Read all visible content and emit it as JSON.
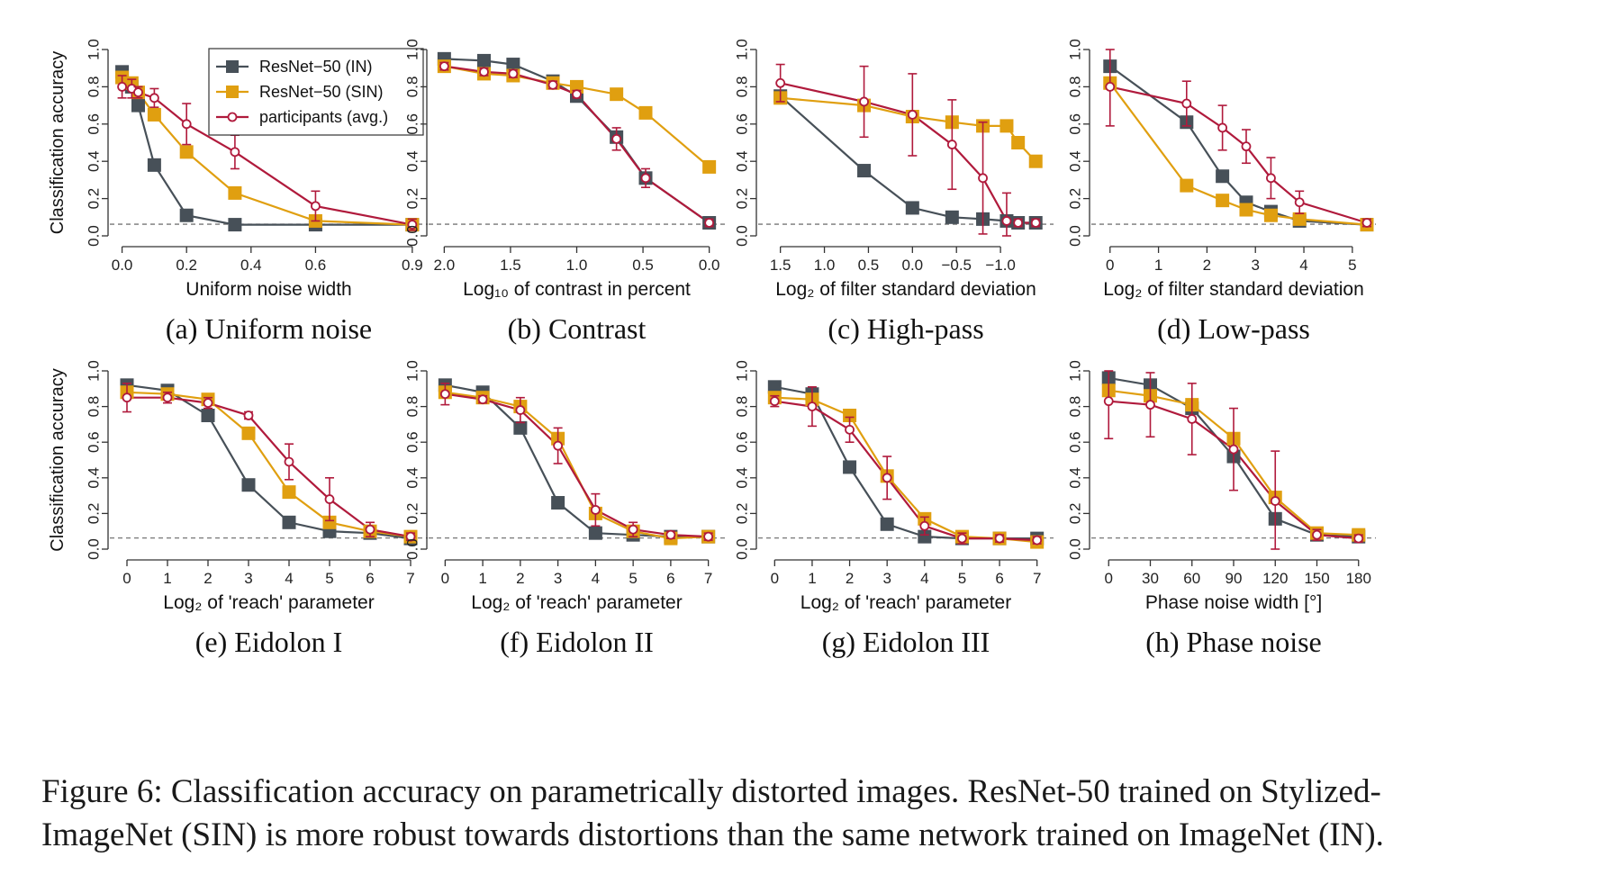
{
  "colors": {
    "in": "#475058",
    "sin": "#e09f10",
    "participants": "#b01a3c",
    "chance": "#777777"
  },
  "legend": [
    "ResNet−50 (IN)",
    "ResNet−50 (SIN)",
    "participants (avg.)"
  ],
  "caption": {
    "line1": "Figure 6: Classification accuracy on parametrically distorted images. ResNet-50 trained on Stylized-",
    "line2": "ImageNet (SIN) is more robust towards distortions than the same network trained on ImageNet (IN)."
  },
  "chart_data": [
    {
      "type": "line",
      "title": "(a) Uniform noise",
      "xlabel": "Uniform noise width",
      "ylabel": "Classification accuracy",
      "xlim": [
        -0.01,
        0.92
      ],
      "ylim": [
        0,
        1
      ],
      "xticks": [
        0.0,
        0.2,
        0.4,
        0.6,
        0.9
      ],
      "xtick_labels": [
        "0.0",
        "0.2",
        "0.4",
        "0.6",
        "0.9"
      ],
      "yticks": [
        0,
        0.2,
        0.4,
        0.6,
        0.8,
        1.0
      ],
      "ytick_labels": [
        "0.0",
        "0.2",
        "0.4",
        "0.6",
        "0.8",
        "1.0"
      ],
      "chance": 0.0625,
      "legend_position": "top-right",
      "x": [
        0.0,
        0.03,
        0.05,
        0.1,
        0.2,
        0.35,
        0.6,
        0.9
      ],
      "series": [
        {
          "name": "ResNet−50 (IN)",
          "values": [
            0.88,
            0.8,
            0.7,
            0.38,
            0.11,
            0.06,
            0.06,
            0.06
          ]
        },
        {
          "name": "ResNet−50 (SIN)",
          "values": [
            0.85,
            0.82,
            0.77,
            0.65,
            0.45,
            0.23,
            0.08,
            0.06
          ]
        },
        {
          "name": "participants (avg.)",
          "values": [
            0.8,
            0.79,
            0.77,
            0.74,
            0.6,
            0.45,
            0.16,
            0.06
          ],
          "err": [
            0.06,
            0.05,
            0.03,
            0.05,
            0.11,
            0.09,
            0.08,
            0.03
          ]
        }
      ]
    },
    {
      "type": "line",
      "title": "(b) Contrast",
      "xlabel": "Log₁₀ of contrast in percent",
      "xlim": [
        2.05,
        -0.05
      ],
      "ylim": [
        0,
        1
      ],
      "xticks": [
        2.0,
        1.5,
        1.0,
        0.5,
        0.0
      ],
      "xtick_labels": [
        "2.0",
        "1.5",
        "1.0",
        "0.5",
        "0.0"
      ],
      "yticks": [
        0,
        0.2,
        0.4,
        0.6,
        0.8,
        1.0
      ],
      "ytick_labels": [
        "0.0",
        "0.2",
        "0.4",
        "0.6",
        "0.8",
        "1.0"
      ],
      "chance": 0.0625,
      "x": [
        2.0,
        1.7,
        1.48,
        1.18,
        1.0,
        0.7,
        0.48,
        0.0
      ],
      "series": [
        {
          "name": "ResNet−50 (IN)",
          "values": [
            0.95,
            0.94,
            0.92,
            0.83,
            0.75,
            0.53,
            0.31,
            0.07
          ]
        },
        {
          "name": "ResNet−50 (SIN)",
          "values": [
            0.91,
            0.87,
            0.86,
            0.82,
            0.8,
            0.76,
            0.66,
            0.37
          ]
        },
        {
          "name": "participants (avg.)",
          "values": [
            0.91,
            0.88,
            0.87,
            0.81,
            0.76,
            0.52,
            0.31,
            0.07
          ],
          "err": [
            0.02,
            0.02,
            0.02,
            0.02,
            0.02,
            0.06,
            0.05,
            0.02
          ]
        }
      ]
    },
    {
      "type": "line",
      "title": "(c) High-pass",
      "xlabel": "Log₂ of filter standard deviation",
      "xlim": [
        1.65,
        -1.5
      ],
      "ylim": [
        0,
        1
      ],
      "xticks": [
        1.5,
        1.0,
        0.5,
        0.0,
        -0.5,
        -1.0
      ],
      "xtick_labels": [
        "1.5",
        "1.0",
        "0.5",
        "0.0",
        "−0.5",
        "−1.0"
      ],
      "yticks": [
        0,
        0.2,
        0.4,
        0.6,
        0.8,
        1.0
      ],
      "ytick_labels": [
        "0.0",
        "0.2",
        "0.4",
        "0.6",
        "0.8",
        "1.0"
      ],
      "chance": 0.0625,
      "x": [
        1.5,
        0.55,
        0.0,
        -0.45,
        -0.8,
        -1.07,
        -1.2,
        -1.4
      ],
      "series": [
        {
          "name": "ResNet−50 (IN)",
          "values": [
            0.75,
            0.35,
            0.15,
            0.1,
            0.09,
            0.08,
            0.07,
            0.07
          ]
        },
        {
          "name": "ResNet−50 (SIN)",
          "values": [
            0.74,
            0.7,
            0.64,
            0.61,
            0.59,
            0.59,
            0.5,
            0.4
          ]
        },
        {
          "name": "participants (avg.)",
          "values": [
            0.82,
            0.72,
            0.65,
            0.49,
            0.31,
            0.08,
            0.07,
            0.07
          ],
          "err": [
            0.1,
            0.19,
            0.22,
            0.24,
            0.3,
            0.15,
            0.02,
            0.02
          ]
        }
      ]
    },
    {
      "type": "line",
      "title": "(d) Low-pass",
      "xlabel": "Log₂ of filter standard deviation",
      "xlim": [
        -0.2,
        5.3
      ],
      "ylim": [
        0,
        1
      ],
      "xticks": [
        0,
        1,
        2,
        3,
        4,
        5
      ],
      "xtick_labels": [
        "0",
        "1",
        "2",
        "3",
        "4",
        "5"
      ],
      "yticks": [
        0,
        0.2,
        0.4,
        0.6,
        0.8,
        1.0
      ],
      "ytick_labels": [
        "0.0",
        "0.2",
        "0.4",
        "0.6",
        "0.8",
        "1.0"
      ],
      "chance": 0.0625,
      "x": [
        0,
        1.58,
        2.32,
        2.81,
        3.32,
        3.91,
        5.3
      ],
      "series": [
        {
          "name": "ResNet−50 (IN)",
          "values": [
            0.91,
            0.61,
            0.32,
            0.18,
            0.13,
            0.08,
            0.06
          ]
        },
        {
          "name": "ResNet−50 (SIN)",
          "values": [
            0.82,
            0.27,
            0.19,
            0.14,
            0.11,
            0.09,
            0.06
          ]
        },
        {
          "name": "participants (avg.)",
          "values": [
            0.8,
            0.71,
            0.58,
            0.48,
            0.31,
            0.18,
            0.07
          ],
          "err": [
            0.21,
            0.12,
            0.12,
            0.09,
            0.11,
            0.06,
            0.02
          ]
        }
      ]
    },
    {
      "type": "line",
      "title": "(e) Eidolon I",
      "xlabel": "Log₂ of 'reach' parameter",
      "ylabel": "Classification accuracy",
      "xlim": [
        -0.2,
        7.2
      ],
      "ylim": [
        0,
        1
      ],
      "xticks": [
        0,
        1,
        2,
        3,
        4,
        5,
        6,
        7
      ],
      "xtick_labels": [
        "0",
        "1",
        "2",
        "3",
        "4",
        "5",
        "6",
        "7"
      ],
      "yticks": [
        0,
        0.2,
        0.4,
        0.6,
        0.8,
        1.0
      ],
      "ytick_labels": [
        "0.0",
        "0.2",
        "0.4",
        "0.6",
        "0.8",
        "1.0"
      ],
      "chance": 0.0625,
      "x": [
        0,
        1,
        2,
        3,
        4,
        5,
        6,
        7
      ],
      "series": [
        {
          "name": "ResNet−50 (IN)",
          "values": [
            0.92,
            0.89,
            0.75,
            0.36,
            0.15,
            0.1,
            0.09,
            0.06
          ]
        },
        {
          "name": "ResNet−50 (SIN)",
          "values": [
            0.88,
            0.87,
            0.84,
            0.65,
            0.32,
            0.15,
            0.1,
            0.07
          ]
        },
        {
          "name": "participants (avg.)",
          "values": [
            0.85,
            0.85,
            0.82,
            0.75,
            0.49,
            0.28,
            0.11,
            0.07
          ],
          "err": [
            0.08,
            0.03,
            0.03,
            0.02,
            0.1,
            0.12,
            0.04,
            0.02
          ]
        }
      ]
    },
    {
      "type": "line",
      "title": "(f) Eidolon II",
      "xlabel": "Log₂ of 'reach' parameter",
      "xlim": [
        -0.2,
        7.2
      ],
      "ylim": [
        0,
        1
      ],
      "xticks": [
        0,
        1,
        2,
        3,
        4,
        5,
        6,
        7
      ],
      "xtick_labels": [
        "0",
        "1",
        "2",
        "3",
        "4",
        "5",
        "6",
        "7"
      ],
      "yticks": [
        0,
        0.2,
        0.4,
        0.6,
        0.8,
        1.0
      ],
      "ytick_labels": [
        "0.0",
        "0.2",
        "0.4",
        "0.6",
        "0.8",
        "1.0"
      ],
      "chance": 0.0625,
      "x": [
        0,
        1,
        2,
        3,
        4,
        5,
        6,
        7
      ],
      "series": [
        {
          "name": "ResNet−50 (IN)",
          "values": [
            0.92,
            0.88,
            0.68,
            0.26,
            0.09,
            0.08,
            0.07,
            0.07
          ]
        },
        {
          "name": "ResNet−50 (SIN)",
          "values": [
            0.88,
            0.85,
            0.8,
            0.62,
            0.2,
            0.1,
            0.06,
            0.07
          ]
        },
        {
          "name": "participants (avg.)",
          "values": [
            0.87,
            0.84,
            0.78,
            0.58,
            0.22,
            0.11,
            0.08,
            0.07
          ],
          "err": [
            0.06,
            0.02,
            0.07,
            0.1,
            0.09,
            0.04,
            0.02,
            0.02
          ]
        }
      ]
    },
    {
      "type": "line",
      "title": "(g) Eidolon III",
      "xlabel": "Log₂ of 'reach' parameter",
      "xlim": [
        -0.2,
        7.2
      ],
      "ylim": [
        0,
        1
      ],
      "xticks": [
        0,
        1,
        2,
        3,
        4,
        5,
        6,
        7
      ],
      "xtick_labels": [
        "0",
        "1",
        "2",
        "3",
        "4",
        "5",
        "6",
        "7"
      ],
      "yticks": [
        0,
        0.2,
        0.4,
        0.6,
        0.8,
        1.0
      ],
      "ytick_labels": [
        "0.0",
        "0.2",
        "0.4",
        "0.6",
        "0.8",
        "1.0"
      ],
      "chance": 0.0625,
      "x": [
        0,
        1,
        2,
        3,
        4,
        5,
        6,
        7
      ],
      "series": [
        {
          "name": "ResNet−50 (IN)",
          "values": [
            0.91,
            0.87,
            0.46,
            0.14,
            0.07,
            0.06,
            0.06,
            0.06
          ]
        },
        {
          "name": "ResNet−50 (SIN)",
          "values": [
            0.85,
            0.84,
            0.75,
            0.41,
            0.17,
            0.07,
            0.06,
            0.04
          ]
        },
        {
          "name": "participants (avg.)",
          "values": [
            0.83,
            0.8,
            0.67,
            0.4,
            0.13,
            0.06,
            0.06,
            0.05
          ],
          "err": [
            0.03,
            0.11,
            0.07,
            0.12,
            0.05,
            0.03,
            0.02,
            0.02
          ]
        }
      ]
    },
    {
      "type": "line",
      "title": "(h) Phase noise",
      "xlabel": "Phase noise width [°]",
      "xlim": [
        -6,
        186
      ],
      "ylim": [
        0,
        1
      ],
      "xticks": [
        0,
        30,
        60,
        90,
        120,
        150,
        180
      ],
      "xtick_labels": [
        "0",
        "30",
        "60",
        "90",
        "120",
        "150",
        "180"
      ],
      "yticks": [
        0,
        0.2,
        0.4,
        0.6,
        0.8,
        1.0
      ],
      "ytick_labels": [
        "0.0",
        "0.2",
        "0.4",
        "0.6",
        "0.8",
        "1.0"
      ],
      "chance": 0.0625,
      "x": [
        0,
        30,
        60,
        90,
        120,
        150,
        180
      ],
      "series": [
        {
          "name": "ResNet−50 (IN)",
          "values": [
            0.96,
            0.92,
            0.79,
            0.52,
            0.17,
            0.08,
            0.07
          ]
        },
        {
          "name": "ResNet−50 (SIN)",
          "values": [
            0.89,
            0.86,
            0.81,
            0.62,
            0.29,
            0.09,
            0.08
          ]
        },
        {
          "name": "participants (avg.)",
          "values": [
            0.83,
            0.81,
            0.73,
            0.56,
            0.27,
            0.08,
            0.06
          ],
          "err": [
            0.21,
            0.18,
            0.2,
            0.23,
            0.28,
            0.03,
            0.02
          ]
        }
      ]
    }
  ]
}
